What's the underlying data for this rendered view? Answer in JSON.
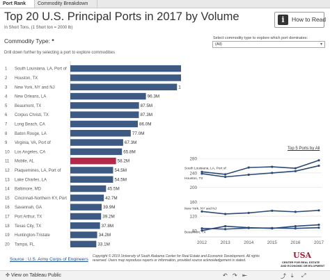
{
  "tabs": [
    {
      "label": "Port Rank"
    },
    {
      "label": "Commodity Breakdown"
    }
  ],
  "title": "Top 20 U.S. Principal Ports in 2017 by Volume",
  "subtitle": "In Short Tons, (1 Short ton = 2000 lb)",
  "how_to_read": "How to Read",
  "commodity_type_label": "Commodity Type:",
  "commodity_type_required": "*",
  "drill_text": "Drill down further by selecting a port to explore commodities",
  "filter": {
    "label": "Select commodity type to explore which port dominates:",
    "value": "(All)"
  },
  "top5_label": "Top 5 Ports by All",
  "source": "Source : U.S. Army Corps of Engineers",
  "copyright": "Copyright © 2019 University of South Alabama Center for Real Estate and Economic Development. All rights reserved. Users may reproduce reports or information, provided source acknowledgement is stated.",
  "logo": {
    "mark": "USA",
    "line1": "CENTER FOR REAL ESTATE",
    "line2": "AND ECONOMIC DEVELOPMENT"
  },
  "footer": {
    "view_on": "View on Tableau Public"
  },
  "colors": {
    "bar": "#3c5a83",
    "highlight": "#b5284a",
    "line": "#2c4a77"
  },
  "chart_data": [
    {
      "type": "bar",
      "orientation": "horizontal",
      "ranks": [
        "1",
        "2",
        "3",
        "4",
        "5",
        "6",
        "7",
        "8",
        "9",
        "10",
        "11",
        "12",
        "13",
        "14",
        "15",
        "16",
        "17",
        "18",
        "19",
        "20"
      ],
      "categories": [
        "South Louisiana, LA, Port of",
        "Houston, TX",
        "New York, NY and NJ",
        "New Orleans, LA",
        "Beaumont, TX",
        "Corpus Christi, TX",
        "Long Beach, CA",
        "Baton Rouge, LA",
        "Virginia, VA, Port of",
        "Los Angeles, CA",
        "Mobile, AL",
        "Plaquemines, LA, Port of",
        "Lake Charles, LA",
        "Baltimore, MD",
        "Cincinnati-Northern KY, Port",
        "Savannah, GA",
        "Port Arthur, TX",
        "Texas City, TX",
        "Huntington-Tristate",
        "Tampa, FL"
      ],
      "values": [
        275.1,
        260.1,
        135.9,
        96.3,
        87.5,
        87.3,
        86.0,
        77.0,
        67.3,
        65.8,
        58.2,
        54.5,
        54.5,
        45.5,
        42.7,
        39.9,
        39.2,
        37.8,
        34.2,
        33.1
      ],
      "value_labels": [
        "275.1M",
        "260.1M",
        "135.9M",
        "96.3M",
        "87.5M",
        "87.3M",
        "86.0M",
        "77.0M",
        "67.3M",
        "65.8M",
        "58.2M",
        "54.5M",
        "54.5M",
        "45.5M",
        "42.7M",
        "39.9M",
        "39.2M",
        "37.8M",
        "34.2M",
        "33.1M"
      ],
      "highlighted": "Mobile, AL",
      "xlim": [
        0,
        290
      ]
    },
    {
      "type": "line",
      "title": "Top 5 Ports by All",
      "x": [
        2012,
        2013,
        2014,
        2015,
        2016,
        2017
      ],
      "yticks": [
        80,
        120,
        160,
        200,
        240,
        280
      ],
      "ylim": [
        70,
        290
      ],
      "series": [
        {
          "name": "South Louisiana, LA, Port of",
          "values": [
            243,
            236,
            255,
            257,
            253,
            275
          ]
        },
        {
          "name": "Houston, TX",
          "values": [
            238,
            229,
            235,
            240,
            245,
            260
          ]
        },
        {
          "name": "New York, NY and NJ",
          "values": [
            133,
            126,
            129,
            135,
            132,
            136
          ]
        },
        {
          "name": "Beaumont, TX",
          "values": [
            86,
            84,
            87,
            87,
            86,
            88
          ]
        },
        {
          "name": "",
          "values": [
            80,
            92,
            88,
            86,
            92,
            96
          ]
        }
      ]
    }
  ]
}
